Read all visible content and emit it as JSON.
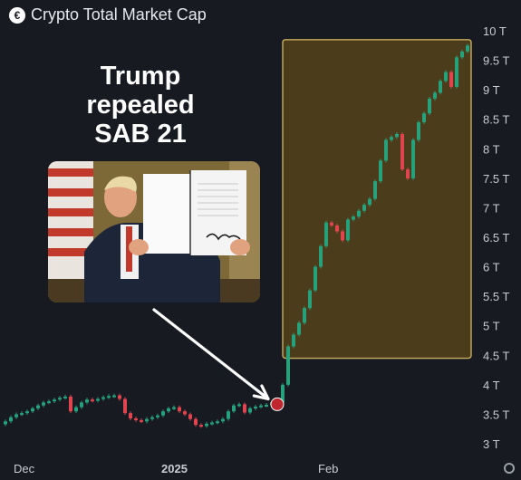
{
  "header": {
    "title": "Crypto Total Market Cap",
    "logo_icon": "coin-logo-icon"
  },
  "annotation": {
    "lines": [
      "Trump",
      "repealed",
      "SAB 21"
    ]
  },
  "photo": {
    "icon": "person-holding-signed-document-photo"
  },
  "colors": {
    "up": "#26a17b",
    "down": "#e0454f",
    "highlight_fill": "#5e4a1a",
    "highlight_stroke": "#c9ad5e",
    "background": "#171a21",
    "arrow": "#ffffff"
  },
  "chart_data": {
    "type": "candlestick",
    "title": "Crypto Total Market Cap",
    "ylim": [
      2.9,
      10.1
    ],
    "y_ticks": [
      "3 T",
      "3.5 T",
      "4 T",
      "4.5 T",
      "5 T",
      "5.5 T",
      "6 T",
      "6.5 T",
      "7 T",
      "7.5 T",
      "8 T",
      "8.5 T",
      "9 T",
      "9.5 T",
      "10 T"
    ],
    "y_tick_values": [
      3,
      3.5,
      4,
      4.5,
      5,
      5.5,
      6,
      6.5,
      7,
      7.5,
      8,
      8.5,
      9,
      9.5,
      10
    ],
    "x_ticks": [
      "Dec",
      "2025",
      "Feb"
    ],
    "close": [
      3.38,
      3.45,
      3.5,
      3.52,
      3.55,
      3.6,
      3.65,
      3.7,
      3.72,
      3.75,
      3.78,
      3.8,
      3.55,
      3.62,
      3.7,
      3.75,
      3.73,
      3.76,
      3.79,
      3.81,
      3.82,
      3.76,
      3.52,
      3.43,
      3.4,
      3.38,
      3.42,
      3.45,
      3.48,
      3.55,
      3.6,
      3.62,
      3.55,
      3.5,
      3.42,
      3.32,
      3.3,
      3.34,
      3.36,
      3.38,
      3.42,
      3.55,
      3.65,
      3.67,
      3.53,
      3.6,
      3.63,
      3.65,
      3.66,
      3.7,
      3.7,
      4.0,
      4.65,
      4.85,
      5.05,
      5.3,
      5.6,
      6.0,
      6.35,
      6.75,
      6.7,
      6.6,
      6.45,
      6.8,
      6.85,
      6.95,
      7.05,
      7.15,
      7.45,
      7.8,
      8.15,
      8.2,
      8.25,
      7.65,
      7.5,
      8.15,
      8.45,
      8.6,
      8.85,
      8.95,
      9.15,
      9.3,
      9.05,
      9.55,
      9.65,
      9.75
    ],
    "highlight_range": {
      "start_index": 52,
      "end_index": 85,
      "y_range": [
        4.45,
        9.85
      ]
    },
    "marked_candle_index": 50
  }
}
